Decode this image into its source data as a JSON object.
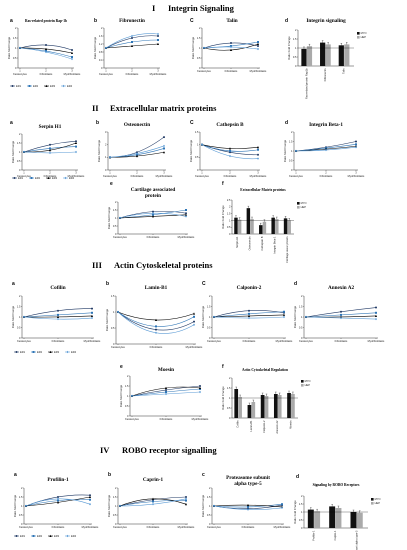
{
  "sections": [
    {
      "numeral": "I",
      "title": "Integrin Signaling"
    },
    {
      "numeral": "II",
      "title": "Extracellular matrix proteins"
    },
    {
      "numeral": "III",
      "title": "Actin Cytoskeletal proteins"
    },
    {
      "numeral": "IV",
      "title": "ROBO receptor signalling"
    }
  ],
  "colors": {
    "c1": "#1f3864",
    "c2": "#2e75b6",
    "c3": "#000000",
    "c4": "#5b9bd5",
    "bar_myo": "#111111",
    "bar_hep": "#aaaaaa"
  },
  "line_legend": [
    "ER1",
    "ER2",
    "ER3",
    "ER4"
  ],
  "bar_legend": [
    "MYO",
    "HEP"
  ],
  "common_ylabel": "Ratio fold Change",
  "common_x": [
    "Keratocytes",
    "Fibroblasts",
    "Myofibroblasts"
  ],
  "bar_ylabel": "Ratio Fold Change",
  "chart_data": [
    {
      "id": "p1a",
      "letter": "a",
      "title": "Ras-related protein Rap-1b",
      "type": "line",
      "x": [
        1,
        2,
        3
      ],
      "xticks": [
        "1",
        "2",
        "3"
      ],
      "ylim": [
        0,
        2
      ],
      "yticks": [
        0,
        0.5,
        1,
        1.5,
        2
      ],
      "series": [
        {
          "values": [
            1,
            1.15,
            0.9
          ]
        },
        {
          "values": [
            1,
            0.85,
            0.55
          ]
        },
        {
          "values": [
            1,
            0.95,
            0.75
          ]
        },
        {
          "values": [
            1,
            0.8,
            0.45
          ]
        }
      ]
    },
    {
      "id": "p1b",
      "letter": "b",
      "title": "Fibronectin",
      "type": "line",
      "x": [
        1,
        2,
        3
      ],
      "xticks": [
        "1",
        "2",
        "3"
      ],
      "ylim": [
        0,
        2
      ],
      "yticks": [
        0,
        0.4,
        0.8,
        1.2,
        1.6,
        2
      ],
      "series": [
        {
          "values": [
            1,
            1.5,
            1.6
          ]
        },
        {
          "values": [
            1,
            1.3,
            1.4
          ]
        },
        {
          "values": [
            1,
            1.1,
            1.2
          ]
        },
        {
          "values": [
            1,
            1.6,
            1.7
          ]
        }
      ]
    },
    {
      "id": "p1c",
      "letter": "C",
      "title": "Talin",
      "type": "line",
      "x": [
        1,
        2,
        3
      ],
      "xticks": [
        "",
        "",
        ""
      ],
      "ylim": [
        0,
        2
      ],
      "yticks": [
        0,
        0.5,
        1,
        1.5,
        2
      ],
      "series": [
        {
          "values": [
            1,
            1.25,
            1.1
          ]
        },
        {
          "values": [
            1,
            1.1,
            1.3
          ]
        },
        {
          "values": [
            1,
            0.9,
            1.2
          ]
        },
        {
          "values": [
            1,
            1.05,
            0.95
          ]
        }
      ]
    },
    {
      "id": "p1d",
      "letter": "d",
      "title": "Integrin signaling",
      "type": "bar",
      "categories": [
        "Ras-related protein Rap1b",
        "Fibronectin",
        "Talin"
      ],
      "ylim": [
        0,
        2
      ],
      "yticks": [
        0,
        0.5,
        1,
        1.5,
        2
      ],
      "series": [
        {
          "name": "MYO",
          "values": [
            0.95,
            1.3,
            1.15
          ]
        },
        {
          "name": "HEP",
          "values": [
            1.1,
            1.2,
            1.2
          ]
        }
      ],
      "refline": 1
    },
    {
      "id": "p2a",
      "letter": "a",
      "title": "Serpin H1",
      "type": "line",
      "x": [
        1,
        2,
        3
      ],
      "xticks": [
        "1",
        "2",
        "3"
      ],
      "ylim": [
        0,
        2
      ],
      "yticks": [
        0,
        0.5,
        1,
        1.5,
        2
      ],
      "series": [
        {
          "values": [
            1,
            1.4,
            1.6
          ]
        },
        {
          "values": [
            1,
            1.2,
            1.3
          ]
        },
        {
          "values": [
            1,
            1.1,
            1.5
          ]
        },
        {
          "values": [
            1,
            0.95,
            1.0
          ]
        }
      ]
    },
    {
      "id": "p2b",
      "letter": "b",
      "title": "Osteonectin",
      "type": "line",
      "x": [
        1,
        2,
        3
      ],
      "xticks": [
        "1",
        "2",
        "3"
      ],
      "ylim": [
        0,
        3
      ],
      "yticks": [
        0,
        1,
        2,
        3
      ],
      "series": [
        {
          "values": [
            1,
            1.4,
            2.6
          ]
        },
        {
          "values": [
            1,
            1.2,
            1.7
          ]
        },
        {
          "values": [
            1,
            1.1,
            1.4
          ]
        },
        {
          "values": [
            1,
            1.3,
            1.9
          ]
        }
      ]
    },
    {
      "id": "p2c",
      "letter": "C",
      "title": "Cathepsin B",
      "type": "line",
      "x": [
        1,
        2,
        3
      ],
      "xticks": [
        "1",
        "2",
        "3"
      ],
      "ylim": [
        0,
        1.5
      ],
      "yticks": [
        0,
        0.5,
        1,
        1.5
      ],
      "series": [
        {
          "values": [
            1,
            0.7,
            0.6
          ]
        },
        {
          "values": [
            1,
            0.75,
            0.8
          ]
        },
        {
          "values": [
            1,
            0.85,
            0.9
          ]
        },
        {
          "values": [
            1,
            0.55,
            0.45
          ]
        }
      ]
    },
    {
      "id": "p2d",
      "letter": "d",
      "title": "Integrin Beta-1",
      "type": "line",
      "x": [
        1,
        2,
        3
      ],
      "xticks": [
        "1",
        "2",
        "3"
      ],
      "ylim": [
        0,
        2
      ],
      "yticks": [
        0,
        0.5,
        1,
        1.5,
        2
      ],
      "series": [
        {
          "values": [
            1,
            1.2,
            1.5
          ]
        },
        {
          "values": [
            1,
            1.15,
            1.35
          ]
        },
        {
          "values": [
            1,
            1.1,
            1.25
          ]
        },
        {
          "values": [
            1,
            1.05,
            1.2
          ]
        }
      ]
    },
    {
      "id": "p2e",
      "letter": "e",
      "title": "Cartilage associated protein",
      "type": "line",
      "x": [
        1,
        2,
        3
      ],
      "xticks": [
        "",
        "",
        ""
      ],
      "ylim": [
        0,
        2
      ],
      "yticks": [
        0,
        0.5,
        1,
        1.5,
        2
      ],
      "series": [
        {
          "values": [
            1,
            1.4,
            1.3
          ]
        },
        {
          "values": [
            1,
            1.2,
            1.5
          ]
        },
        {
          "values": [
            1,
            1.1,
            1.2
          ]
        },
        {
          "values": [
            1,
            1.3,
            1.1
          ]
        }
      ]
    },
    {
      "id": "p2f",
      "letter": "f",
      "title": "Extracellular Matrix proteins",
      "type": "bar",
      "categories": [
        "Serpin H1",
        "Osteonectin",
        "Cathepsin B",
        "Integrin Beta-1",
        "Cartilage assoc protein"
      ],
      "ylim": [
        0,
        2.5
      ],
      "yticks": [
        0,
        0.5,
        1,
        1.5,
        2,
        2.5
      ],
      "series": [
        {
          "name": "MYO",
          "values": [
            1.2,
            1.9,
            0.65,
            1.2,
            1.15
          ]
        },
        {
          "name": "HEP",
          "values": [
            1.05,
            1.1,
            0.9,
            1.1,
            1.0
          ]
        }
      ],
      "refline": 1
    },
    {
      "id": "p3a",
      "letter": "a",
      "title": "Cofilin",
      "type": "line",
      "x": [
        1,
        2,
        3
      ],
      "xticks": [
        "",
        "",
        ""
      ],
      "ylim": [
        0,
        2
      ],
      "yticks": [
        0,
        0.5,
        1,
        1.5,
        2
      ],
      "series": [
        {
          "values": [
            1,
            1.3,
            1.4
          ]
        },
        {
          "values": [
            1,
            1.1,
            1.2
          ]
        },
        {
          "values": [
            1,
            1.0,
            1.05
          ]
        },
        {
          "values": [
            1,
            0.9,
            0.95
          ]
        }
      ]
    },
    {
      "id": "p3b",
      "letter": "b",
      "title": "Lamin-B1",
      "type": "line",
      "x": [
        1,
        2,
        3
      ],
      "xticks": [
        "",
        "",
        ""
      ],
      "ylim": [
        0,
        1.5
      ],
      "yticks": [
        0,
        0.5,
        1,
        1.5
      ],
      "series": [
        {
          "values": [
            1,
            0.45,
            0.7
          ]
        },
        {
          "values": [
            1,
            0.55,
            0.85
          ]
        },
        {
          "values": [
            1,
            0.75,
            0.95
          ]
        },
        {
          "values": [
            1,
            0.35,
            0.6
          ]
        }
      ]
    },
    {
      "id": "p3c",
      "letter": "C",
      "title": "Calponin-2",
      "type": "line",
      "x": [
        1,
        2,
        3
      ],
      "xticks": [
        "",
        "",
        ""
      ],
      "ylim": [
        0,
        2
      ],
      "yticks": [
        0,
        0.5,
        1,
        1.5,
        2
      ],
      "series": [
        {
          "values": [
            1,
            1.3,
            1.2
          ]
        },
        {
          "values": [
            1,
            1.15,
            1.25
          ]
        },
        {
          "values": [
            1,
            1.05,
            1.1
          ]
        },
        {
          "values": [
            1,
            0.95,
            1.0
          ]
        }
      ]
    },
    {
      "id": "p3d",
      "letter": "d",
      "title": "Annexin A2",
      "type": "line",
      "x": [
        1,
        2,
        3
      ],
      "xticks": [
        "",
        "",
        ""
      ],
      "ylim": [
        0,
        2
      ],
      "yticks": [
        0,
        0.5,
        1,
        1.5,
        2
      ],
      "series": [
        {
          "values": [
            1,
            1.25,
            1.45
          ]
        },
        {
          "values": [
            1,
            1.1,
            1.2
          ]
        },
        {
          "values": [
            1,
            1.0,
            1.05
          ]
        },
        {
          "values": [
            1,
            0.95,
            0.9
          ]
        }
      ]
    },
    {
      "id": "p3e",
      "letter": "e",
      "title": "Moesin",
      "type": "line",
      "x": [
        1,
        2,
        3
      ],
      "xticks": [
        "",
        "",
        ""
      ],
      "ylim": [
        0,
        2
      ],
      "yticks": [
        0,
        0.5,
        1,
        1.5,
        2
      ],
      "series": [
        {
          "values": [
            1,
            1.3,
            1.5
          ]
        },
        {
          "values": [
            1,
            1.2,
            1.35
          ]
        },
        {
          "values": [
            1,
            1.4,
            1.4
          ]
        },
        {
          "values": [
            1,
            1.1,
            1.2
          ]
        }
      ]
    },
    {
      "id": "p3f",
      "letter": "f",
      "title": "Actin Cytoskeletal Regulation",
      "type": "bar",
      "categories": [
        "Cofilin",
        "Lamin-B1",
        "Calponin-2",
        "Annexin A2",
        "Moesin"
      ],
      "ylim": [
        0,
        2
      ],
      "yticks": [
        0,
        0.5,
        1,
        1.5,
        2
      ],
      "series": [
        {
          "name": "MYO",
          "values": [
            1.45,
            0.65,
            1.15,
            1.2,
            1.25
          ]
        },
        {
          "name": "HEP",
          "values": [
            1.05,
            0.8,
            1.1,
            1.15,
            1.2
          ]
        }
      ],
      "refline": 1
    },
    {
      "id": "p4a",
      "letter": "a",
      "title": "Profilin-1",
      "type": "line",
      "x": [
        1,
        2,
        3
      ],
      "xticks": [
        "",
        "",
        ""
      ],
      "ylim": [
        0,
        2
      ],
      "yticks": [
        0,
        0.5,
        1,
        1.5,
        2
      ],
      "series": [
        {
          "values": [
            1,
            1.5,
            1.6
          ]
        },
        {
          "values": [
            1,
            1.3,
            1.35
          ]
        },
        {
          "values": [
            1,
            1.2,
            1.5
          ]
        },
        {
          "values": [
            1,
            1.4,
            1.1
          ]
        }
      ]
    },
    {
      "id": "p4b",
      "letter": "b",
      "title": "Caprin-1",
      "type": "line",
      "x": [
        1,
        2,
        3
      ],
      "xticks": [
        "",
        "",
        ""
      ],
      "ylim": [
        0,
        2
      ],
      "yticks": [
        0,
        0.5,
        1,
        1.5,
        2
      ],
      "series": [
        {
          "values": [
            1,
            1.35,
            1.5
          ]
        },
        {
          "values": [
            1,
            1.25,
            1.3
          ]
        },
        {
          "values": [
            1,
            1.4,
            1.1
          ]
        },
        {
          "values": [
            1,
            1.1,
            1.4
          ]
        }
      ]
    },
    {
      "id": "p4c",
      "letter": "c",
      "title": "Proteasome subunit alpha type-5",
      "type": "line",
      "x": [
        1,
        2,
        3
      ],
      "xticks": [
        "",
        "",
        ""
      ],
      "ylim": [
        0,
        2
      ],
      "yticks": [
        0,
        0.5,
        1,
        1.5,
        2
      ],
      "series": [
        {
          "values": [
            1,
            0.85,
            1.05
          ]
        },
        {
          "values": [
            1,
            0.95,
            1.1
          ]
        },
        {
          "values": [
            1,
            1.05,
            0.95
          ]
        },
        {
          "values": [
            1,
            0.8,
            0.9
          ]
        }
      ]
    },
    {
      "id": "p4d",
      "letter": "d",
      "title": "Signaling by ROBO Receptors",
      "type": "bar",
      "categories": [
        "Profilin-1",
        "Caprin-1",
        "Proteasome subunit alpha type-5"
      ],
      "ylim": [
        0,
        2
      ],
      "yticks": [
        0,
        0.5,
        1,
        1.5,
        2
      ],
      "series": [
        {
          "name": "MYO",
          "values": [
            1.15,
            1.35,
            1.0
          ]
        },
        {
          "name": "HEP",
          "values": [
            1.05,
            1.25,
            0.95
          ]
        }
      ],
      "refline": 1
    }
  ]
}
